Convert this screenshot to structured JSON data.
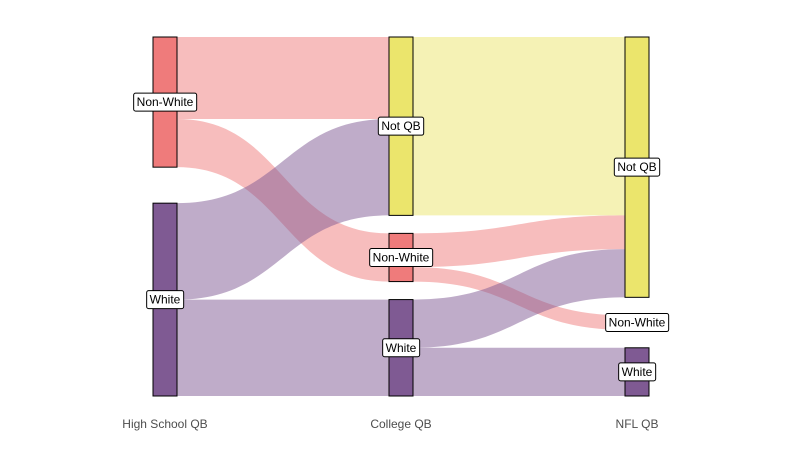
{
  "chart_data": {
    "type": "sankey",
    "axes": [
      "High School QB",
      "College QB",
      "NFL QB"
    ],
    "colors": {
      "Non-White": "#ef7b7b",
      "White": "#7f5a93",
      "Not QB": "#ebe56c"
    },
    "nodes": [
      {
        "id": "hs_nonwhite",
        "axis": 0,
        "label": "Non-White",
        "category": "Non-White",
        "value": 27
      },
      {
        "id": "hs_white",
        "axis": 0,
        "label": "White",
        "category": "White",
        "value": 40
      },
      {
        "id": "col_notqb",
        "axis": 1,
        "label": "Not QB",
        "category": "Not QB",
        "value": 37
      },
      {
        "id": "col_nonwhite",
        "axis": 1,
        "label": "Non-White",
        "category": "Non-White",
        "value": 10
      },
      {
        "id": "col_white",
        "axis": 1,
        "label": "White",
        "category": "White",
        "value": 20
      },
      {
        "id": "nfl_notqb",
        "axis": 2,
        "label": "Not QB",
        "category": "Not QB",
        "value": 54
      },
      {
        "id": "nfl_nonwhite",
        "axis": 2,
        "label": "Non-White",
        "category": "Non-White",
        "value": 3
      },
      {
        "id": "nfl_white",
        "axis": 2,
        "label": "White",
        "category": "White",
        "value": 10
      }
    ],
    "links": [
      {
        "source": "hs_nonwhite",
        "target": "col_notqb",
        "value": 17
      },
      {
        "source": "hs_nonwhite",
        "target": "col_nonwhite",
        "value": 10
      },
      {
        "source": "hs_white",
        "target": "col_notqb",
        "value": 20
      },
      {
        "source": "hs_white",
        "target": "col_white",
        "value": 20
      },
      {
        "source": "col_notqb",
        "target": "nfl_notqb",
        "value": 37
      },
      {
        "source": "col_nonwhite",
        "target": "nfl_notqb",
        "value": 7
      },
      {
        "source": "col_nonwhite",
        "target": "nfl_nonwhite",
        "value": 3
      },
      {
        "source": "col_white",
        "target": "nfl_notqb",
        "value": 10
      },
      {
        "source": "col_white",
        "target": "nfl_white",
        "value": 10
      }
    ]
  }
}
